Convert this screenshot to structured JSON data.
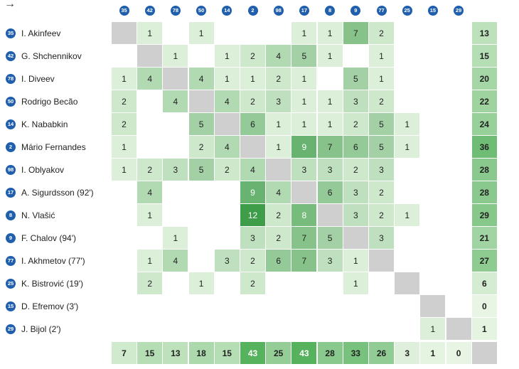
{
  "corner_arrow": "→",
  "chart_data": {
    "type": "heatmap",
    "description_source": "pass matrix",
    "columns": [
      "35",
      "42",
      "78",
      "50",
      "14",
      "2",
      "98",
      "17",
      "8",
      "9",
      "77",
      "25",
      "15",
      "29"
    ],
    "rows": [
      {
        "num": "35",
        "name": "I. Akinfeev"
      },
      {
        "num": "42",
        "name": "G. Shchennikov"
      },
      {
        "num": "78",
        "name": "I. Diveev"
      },
      {
        "num": "50",
        "name": "Rodrigo Becão"
      },
      {
        "num": "14",
        "name": "K. Nababkin"
      },
      {
        "num": "2",
        "name": "Mário Fernandes"
      },
      {
        "num": "98",
        "name": "I. Oblyakov"
      },
      {
        "num": "17",
        "name": "A. Sigurdsson (92')"
      },
      {
        "num": "8",
        "name": "N. Vlašić"
      },
      {
        "num": "9",
        "name": "F. Chalov (94')"
      },
      {
        "num": "77",
        "name": "I. Akhmetov (77')"
      },
      {
        "num": "25",
        "name": "K. Bistrović (19')"
      },
      {
        "num": "15",
        "name": "D. Efremov (3')"
      },
      {
        "num": "29",
        "name": "J. Bijol (2')"
      }
    ],
    "matrix": [
      [
        null,
        1,
        0,
        1,
        0,
        0,
        0,
        1,
        1,
        7,
        2,
        0,
        0,
        0
      ],
      [
        0,
        null,
        1,
        0,
        1,
        2,
        4,
        5,
        1,
        0,
        1,
        0,
        0,
        0
      ],
      [
        1,
        4,
        null,
        4,
        1,
        1,
        2,
        1,
        0,
        5,
        1,
        0,
        0,
        0
      ],
      [
        2,
        0,
        4,
        null,
        4,
        2,
        3,
        1,
        1,
        3,
        2,
        0,
        0,
        0
      ],
      [
        2,
        0,
        0,
        5,
        null,
        6,
        1,
        1,
        1,
        2,
        5,
        1,
        0,
        0
      ],
      [
        1,
        0,
        0,
        2,
        4,
        null,
        1,
        9,
        7,
        6,
        5,
        1,
        0,
        0
      ],
      [
        1,
        2,
        3,
        5,
        2,
        4,
        null,
        3,
        3,
        2,
        3,
        0,
        0,
        0
      ],
      [
        0,
        4,
        0,
        0,
        0,
        9,
        4,
        null,
        6,
        3,
        2,
        0,
        0,
        0
      ],
      [
        0,
        1,
        0,
        0,
        0,
        12,
        2,
        8,
        null,
        3,
        2,
        1,
        0,
        0
      ],
      [
        0,
        0,
        1,
        0,
        0,
        3,
        2,
        7,
        5,
        null,
        3,
        0,
        0,
        0
      ],
      [
        0,
        1,
        4,
        0,
        3,
        2,
        6,
        7,
        3,
        1,
        null,
        0,
        0,
        0
      ],
      [
        0,
        2,
        0,
        1,
        0,
        2,
        0,
        0,
        0,
        1,
        0,
        null,
        0,
        0
      ],
      [
        0,
        0,
        0,
        0,
        0,
        0,
        0,
        0,
        0,
        0,
        0,
        0,
        null,
        0
      ],
      [
        0,
        0,
        0,
        0,
        0,
        0,
        0,
        0,
        0,
        0,
        0,
        0,
        1,
        null
      ]
    ],
    "row_totals": [
      "13",
      "15",
      "20",
      "22",
      "24",
      "36",
      "28",
      "28",
      "29",
      "21",
      "27",
      "6",
      "0",
      "1"
    ],
    "col_totals": [
      "7",
      "15",
      "13",
      "18",
      "15",
      "43",
      "25",
      "43",
      "28",
      "33",
      "26",
      "3",
      "1",
      "0"
    ],
    "color_scale": {
      "low": "#dcefd9",
      "high": "#3e9d49",
      "max_value": 12
    },
    "total_scale": {
      "low": "#e8f5e4",
      "high": "#57b25e",
      "max_value": 43
    },
    "diagonal_color": "#cfcfcf",
    "badge_color": "#1f5fae"
  }
}
